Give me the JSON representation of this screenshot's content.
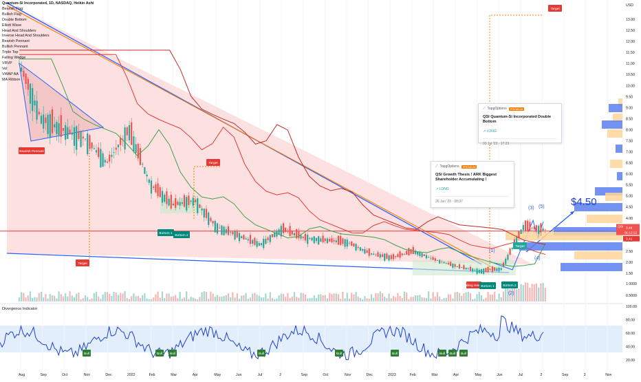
{
  "legend": {
    "title": "Quantum-Si Incorporated, 1D, NASDAQ, Heikin Ashi",
    "items": [
      "Bearish Flag",
      "Bullish Flag",
      "Double Bottom",
      "Elliott Wave",
      "Head And Shoulders",
      "Inverse Head And Shoulders",
      "Bearish Pennant",
      "Bullish Pennant",
      "Triple Top",
      "Falling Wedge",
      "VRVP",
      "Vol",
      "VWAP AA",
      "MA Ribbon"
    ]
  },
  "price_axis": {
    "currency": "USD",
    "ticks": [
      "13.00",
      "12.50",
      "12.00",
      "11.50",
      "11.00",
      "10.50",
      "10.00",
      "9.50",
      "9.00",
      "8.50",
      "8.00",
      "7.50",
      "7.00",
      "6.50",
      "6.00",
      "5.50",
      "5.00",
      "4.50",
      "4.00",
      "3.50",
      "3.00",
      "2.50",
      "2.00",
      "1.50"
    ],
    "current_symbol": "QSI",
    "current_price": "3.48",
    "countdown": "01:12:12",
    "red_line_value": "3.41"
  },
  "volume_axis": {
    "ticks": [
      "1.0000",
      "0.5000"
    ]
  },
  "osc_axis": {
    "ticks": [
      "100.00",
      "80.00",
      "60.00",
      "40.00",
      "20.00"
    ]
  },
  "time_axis": {
    "ticks": [
      "Aug",
      "Sep",
      "Oct",
      "Nov",
      "Dec",
      "2022",
      "Feb",
      "Mar",
      "Apr",
      "May",
      "Jun",
      "Jul",
      "2",
      "Sep",
      "Oct",
      "Nov",
      "Dec",
      "2023",
      "Feb",
      "Mar",
      "Apr",
      "May",
      "Jun",
      "Jul",
      "2",
      "Sep",
      "3",
      "Nov"
    ]
  },
  "annotations": {
    "bearish_pennant": "Bearish Pennant",
    "target_left": "Target",
    "target_mid": "Target",
    "target_top": "Target",
    "target_small": "Target",
    "bottom1_a": "Bottom 1",
    "bottom2_a": "Bottom 2",
    "falling_wedge": "Falling Wedge",
    "bottom1_b": "Bottom 1",
    "bottom2_b": "Bottom 2",
    "wave1": "(1)",
    "wave2": "(2)",
    "wave3": "(3)",
    "wave4": "(4)",
    "wave5": "(5)",
    "price_target": "$4.50",
    "bull": "Bull"
  },
  "idea_cards": [
    {
      "author": "TopgOptions",
      "badge": "PREMIUM",
      "title": "QSI Quantum-Si Incorporated Double Bottom",
      "direction": "LONG",
      "date": "03 Jul '23 · 17:23"
    },
    {
      "author": "TopgOptions",
      "badge": "PREMIUM",
      "title": "QSI Growth Thesis ! ARK Biggest Shareholder Accumulating !",
      "direction": "LONG",
      "date": "26 Jun '23 · 08:37"
    }
  ],
  "oscillator": {
    "title": "Divergence Indicator"
  },
  "colors": {
    "up": "#26a69a",
    "down": "#ef5350",
    "wedge_fill": "#f8c8c8",
    "blue_line": "#2962ff",
    "orange_line": "#f57c00",
    "green_ma": "#43a047",
    "red_ma": "#e53935",
    "vrvp_blue": "#5b7ff0",
    "vrvp_yellow": "#ffd59a"
  },
  "chart_data": {
    "type": "candlestick",
    "series": [
      {
        "name": "QSI",
        "x": [
          "2021-08",
          "2021-09",
          "2021-10",
          "2021-11",
          "2021-12",
          "2022-01",
          "2022-02",
          "2022-03",
          "2022-04",
          "2022-05",
          "2022-06",
          "2022-07",
          "2022-08",
          "2022-09",
          "2022-10",
          "2022-11",
          "2022-12",
          "2023-01",
          "2023-02",
          "2023-03",
          "2023-04",
          "2023-05",
          "2023-06",
          "2023-07",
          "2023-08"
        ],
        "y": [
          11.0,
          8.5,
          8.0,
          7.6,
          6.5,
          8.0,
          5.5,
          4.6,
          4.8,
          3.6,
          3.2,
          2.8,
          3.5,
          3.1,
          3.0,
          2.9,
          2.4,
          2.2,
          2.5,
          2.1,
          1.8,
          1.6,
          1.7,
          3.6,
          3.48
        ]
      }
    ],
    "ylim": [
      1.2,
      13.2
    ]
  }
}
